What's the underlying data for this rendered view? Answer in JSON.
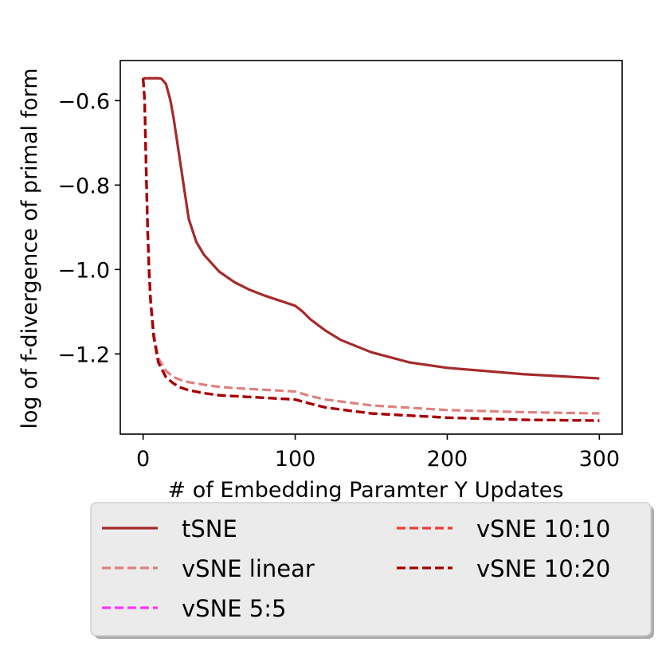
{
  "chart_data": {
    "type": "line",
    "title": "",
    "xlabel": "# of Embedding Paramter Y Updates",
    "ylabel": "log of f-divergence of primal form",
    "xlim": [
      -15,
      315
    ],
    "ylim": [
      -1.39,
      -0.505
    ],
    "xticks": [
      0,
      100,
      200,
      300
    ],
    "yticks": [
      -0.6,
      -0.8,
      -1.0,
      -1.2
    ],
    "xtick_labels": [
      "0",
      "100",
      "200",
      "300"
    ],
    "ytick_labels": [
      "−0.6",
      "−0.8",
      "−1.0",
      "−1.2"
    ],
    "grid": false,
    "legend_position": "bottom-outside",
    "series": [
      {
        "name": "tSNE",
        "color": "#a52a2a",
        "dash": "solid",
        "x": [
          0,
          5,
          10,
          12,
          15,
          18,
          20,
          25,
          30,
          35,
          40,
          50,
          60,
          70,
          80,
          90,
          100,
          105,
          110,
          120,
          130,
          150,
          175,
          200,
          250,
          300
        ],
        "y": [
          -0.547,
          -0.547,
          -0.547,
          -0.548,
          -0.56,
          -0.6,
          -0.64,
          -0.76,
          -0.88,
          -0.935,
          -0.965,
          -1.005,
          -1.03,
          -1.048,
          -1.062,
          -1.074,
          -1.086,
          -1.1,
          -1.118,
          -1.145,
          -1.167,
          -1.196,
          -1.22,
          -1.233,
          -1.248,
          -1.258
        ]
      },
      {
        "name": "vSNE linear",
        "color": "#e08080",
        "dash": "dashed",
        "x": [
          0,
          1,
          2,
          3,
          4,
          5,
          7,
          10,
          15,
          20,
          25,
          30,
          40,
          50,
          60,
          70,
          80,
          90,
          100,
          110,
          120,
          150,
          200,
          250,
          300
        ],
        "y": [
          -0.547,
          -0.6,
          -0.75,
          -0.9,
          -1.0,
          -1.07,
          -1.15,
          -1.21,
          -1.24,
          -1.255,
          -1.262,
          -1.267,
          -1.273,
          -1.278,
          -1.281,
          -1.283,
          -1.285,
          -1.287,
          -1.289,
          -1.3,
          -1.308,
          -1.322,
          -1.333,
          -1.338,
          -1.341
        ]
      },
      {
        "name": "vSNE 5:5",
        "color": "#ff33ff",
        "dash": "dashed",
        "x": [
          0,
          1,
          2,
          3,
          4,
          5,
          7,
          10,
          15,
          20,
          25,
          30,
          40,
          50,
          60,
          70,
          80,
          90,
          100,
          110,
          120,
          150,
          200,
          250,
          300
        ],
        "y": [
          -0.547,
          -0.6,
          -0.76,
          -0.91,
          -1.01,
          -1.08,
          -1.16,
          -1.22,
          -1.255,
          -1.27,
          -1.28,
          -1.286,
          -1.293,
          -1.298,
          -1.3,
          -1.302,
          -1.304,
          -1.306,
          -1.308,
          -1.318,
          -1.327,
          -1.341,
          -1.351,
          -1.356,
          -1.358
        ]
      },
      {
        "name": "vSNE 10:10",
        "color": "#ee3b3b",
        "dash": "dashed",
        "x": [
          0,
          1,
          2,
          3,
          4,
          5,
          7,
          10,
          15,
          20,
          25,
          30,
          40,
          50,
          60,
          70,
          80,
          90,
          100,
          110,
          120,
          150,
          200,
          250,
          300
        ],
        "y": [
          -0.547,
          -0.6,
          -0.76,
          -0.91,
          -1.01,
          -1.08,
          -1.16,
          -1.22,
          -1.255,
          -1.27,
          -1.28,
          -1.286,
          -1.293,
          -1.298,
          -1.3,
          -1.302,
          -1.304,
          -1.306,
          -1.308,
          -1.318,
          -1.327,
          -1.341,
          -1.351,
          -1.356,
          -1.358
        ]
      },
      {
        "name": "vSNE 10:20",
        "color": "#a50000",
        "dash": "dashed",
        "x": [
          0,
          1,
          2,
          3,
          4,
          5,
          7,
          10,
          15,
          20,
          25,
          30,
          40,
          50,
          60,
          70,
          80,
          90,
          100,
          110,
          120,
          150,
          200,
          250,
          300
        ],
        "y": [
          -0.547,
          -0.6,
          -0.76,
          -0.91,
          -1.01,
          -1.08,
          -1.16,
          -1.22,
          -1.255,
          -1.27,
          -1.28,
          -1.286,
          -1.293,
          -1.298,
          -1.3,
          -1.302,
          -1.304,
          -1.306,
          -1.308,
          -1.318,
          -1.327,
          -1.341,
          -1.351,
          -1.356,
          -1.358
        ]
      }
    ]
  }
}
